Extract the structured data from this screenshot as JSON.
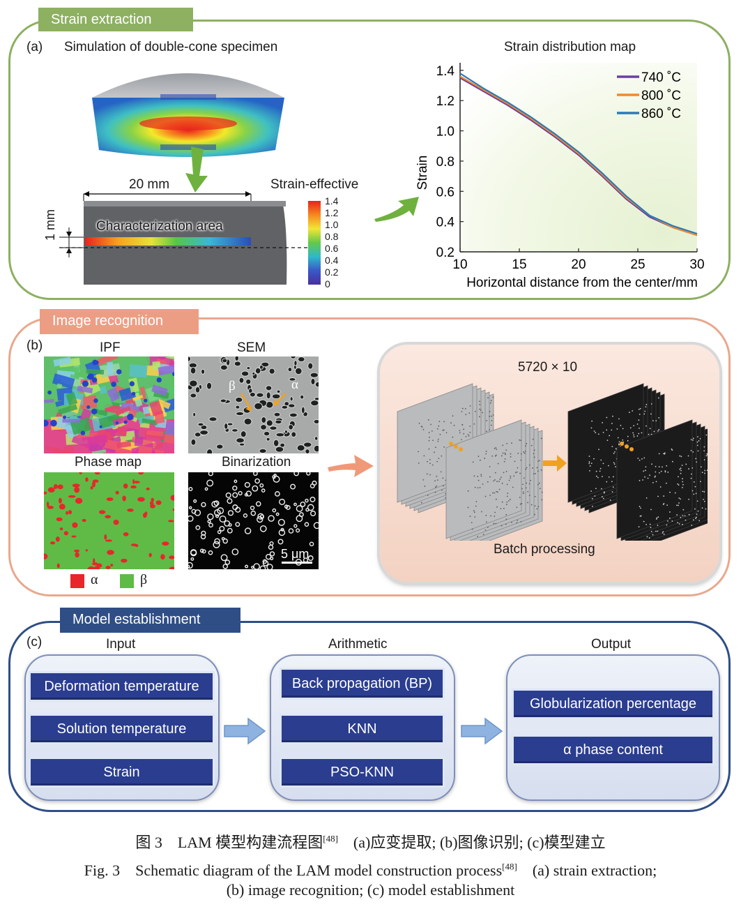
{
  "panel_a": {
    "tag": "Strain extraction",
    "letter": "(a)",
    "sim_title": "Simulation of double-cone specimen",
    "dim_20": "20 mm",
    "dim_1": "1 mm",
    "char_area": "Characterization area",
    "legend_title": "Strain-effective",
    "legend_ticks": [
      "1.4",
      "1.2",
      "1.0",
      "0.8",
      "0.6",
      "0.4",
      "0.2",
      "0"
    ],
    "chart_title": "Strain distribution map"
  },
  "chart_data": {
    "type": "line",
    "title": "Strain distribution map",
    "xlabel": "Horizontal distance from the center/mm",
    "ylabel": "Strain",
    "xlim": [
      10,
      30
    ],
    "ylim": [
      0.2,
      1.45
    ],
    "xticks": [
      "10",
      "15",
      "20",
      "25",
      "30"
    ],
    "yticks": [
      "0.2",
      "0.4",
      "0.6",
      "0.8",
      "1.0",
      "1.2",
      "1.4"
    ],
    "legend_position": "top-right",
    "series": [
      {
        "name": "740 ˚C",
        "color": "#6b3fa0",
        "x": [
          10,
          12,
          14,
          16,
          18,
          20,
          22,
          24,
          26,
          28,
          30
        ],
        "y": [
          1.35,
          1.26,
          1.17,
          1.07,
          0.96,
          0.84,
          0.7,
          0.55,
          0.43,
          0.36,
          0.31
        ]
      },
      {
        "name": "800 ˚C",
        "color": "#f08a2c",
        "x": [
          10,
          12,
          14,
          16,
          18,
          20,
          22,
          24,
          26,
          28,
          30
        ],
        "y": [
          1.36,
          1.27,
          1.18,
          1.08,
          0.97,
          0.85,
          0.71,
          0.56,
          0.44,
          0.36,
          0.31
        ]
      },
      {
        "name": "860 ˚C",
        "color": "#2b7bb9",
        "x": [
          10,
          12,
          14,
          16,
          18,
          20,
          22,
          24,
          26,
          28,
          30
        ],
        "y": [
          1.38,
          1.28,
          1.19,
          1.09,
          0.98,
          0.86,
          0.72,
          0.57,
          0.44,
          0.37,
          0.32
        ]
      }
    ]
  },
  "panel_b": {
    "tag": "Image recognition",
    "letter": "(b)",
    "ipf": "IPF",
    "sem": "SEM",
    "phase_map": "Phase map",
    "binarization": "Binarization",
    "beta_mark": "β",
    "alpha_mark": "α",
    "scale_bar": "5 μm",
    "legend_alpha": "α",
    "legend_beta": "β",
    "batch_count": "5720 × 10",
    "batch_label": "Batch processing",
    "colors": {
      "alpha": "#e8262b",
      "beta": "#5fbb46"
    }
  },
  "panel_c": {
    "tag": "Model establishment",
    "letter": "(c)",
    "input_title": "Input",
    "arith_title": "Arithmetic",
    "output_title": "Output",
    "inputs": [
      "Deformation temperature",
      "Solution temperature",
      "Strain"
    ],
    "methods": [
      "Back propagation (BP)",
      "KNN",
      "PSO-KNN"
    ],
    "outputs": [
      "Globularization percentage",
      "α phase content"
    ]
  },
  "caption": {
    "cn_prefix": "图 3　LAM 模型构建流程图",
    "cn_ref": "[48]",
    "cn_suffix": "　(a)应变提取; (b)图像识别; (c)模型建立",
    "en_prefix": "Fig. 3　Schematic diagram of the LAM model construction process",
    "en_ref": "[48]",
    "en_suffix": "　(a) strain extraction;",
    "en_line2": "(b) image recognition; (c) model establishment"
  }
}
